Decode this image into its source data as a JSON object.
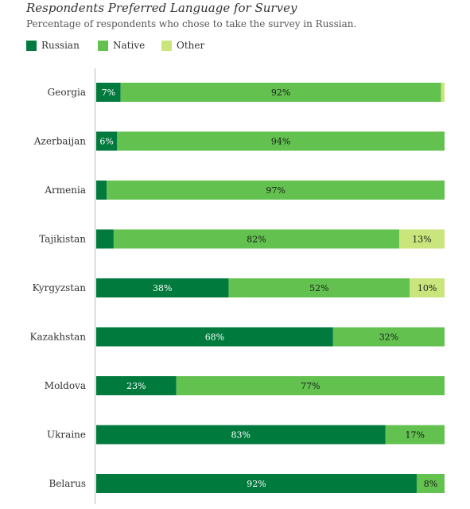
{
  "chart_data": {
    "type": "bar",
    "orientation": "horizontal",
    "stacked": true,
    "title": "Respondents Preferred Language for Survey",
    "subtitle": "Percentage of respondents who chose to take the survey in Russian.",
    "xlim": [
      0,
      100
    ],
    "categories": [
      "Georgia",
      "Azerbaijan",
      "Armenia",
      "Tajikistan",
      "Kyrgyzstan",
      "Kazakhstan",
      "Moldova",
      "Ukraine",
      "Belarus"
    ],
    "series": [
      {
        "name": "Russian",
        "color": "#007a3d",
        "values": [
          7,
          6,
          3,
          5,
          38,
          68,
          23,
          83,
          92
        ],
        "labels": [
          "7%",
          "6%",
          "",
          "",
          "38%",
          "68%",
          "23%",
          "83%",
          "92%"
        ]
      },
      {
        "name": "Native",
        "color": "#62c14f",
        "values": [
          92,
          94,
          97,
          82,
          52,
          32,
          77,
          17,
          8
        ],
        "labels": [
          "92%",
          "94%",
          "97%",
          "82%",
          "52%",
          "32%",
          "77%",
          "17%",
          "8%"
        ]
      },
      {
        "name": "Other",
        "color": "#c9e57b",
        "values": [
          1,
          0,
          0,
          13,
          10,
          0,
          0,
          0,
          0
        ],
        "labels": [
          "",
          "",
          "",
          "13%",
          "10%",
          "",
          "",
          "",
          ""
        ]
      }
    ],
    "legend_position": "top-left",
    "grid": false
  }
}
